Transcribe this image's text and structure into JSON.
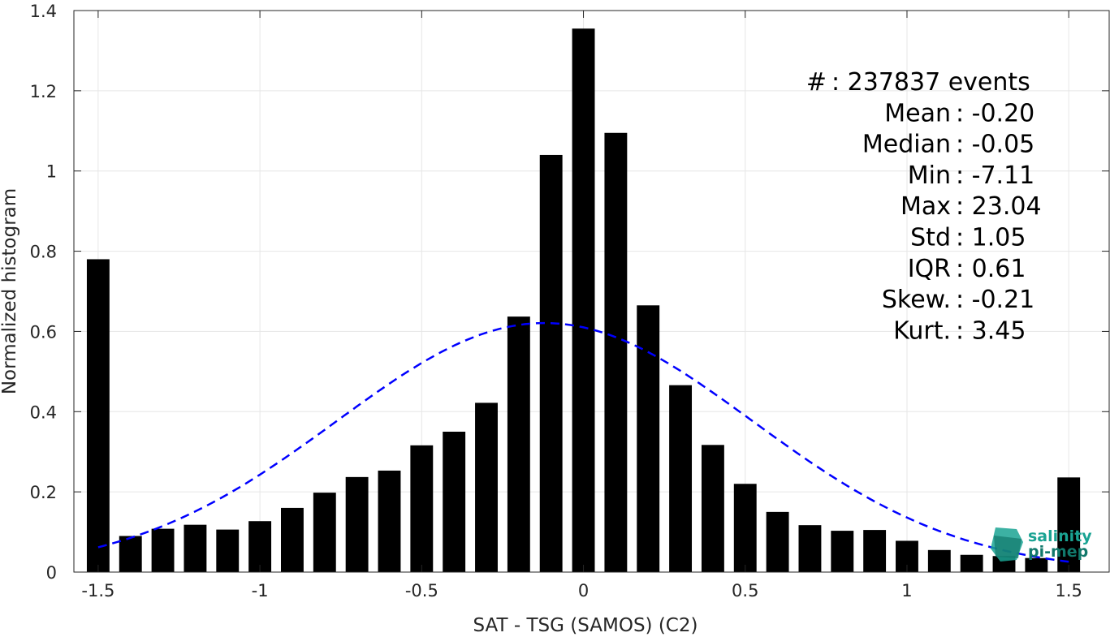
{
  "chart_data": {
    "type": "bar",
    "xlabel": "SAT - TSG (SAMOS) (C2)",
    "ylabel": "Normalized histogram",
    "xlim": [
      -1.575,
      1.625
    ],
    "ylim": [
      0,
      1.4
    ],
    "grid": true,
    "xticks": [
      -1.5,
      -1,
      -0.5,
      0,
      0.5,
      1,
      1.5
    ],
    "xtick_labels": [
      "-1.5",
      "-1",
      "-0.5",
      "0",
      "0.5",
      "1",
      "1.5"
    ],
    "yticks": [
      0,
      0.2,
      0.4,
      0.6,
      0.8,
      1,
      1.2,
      1.4
    ],
    "ytick_labels": [
      "0",
      "0.2",
      "0.4",
      "0.6",
      "0.8",
      "1",
      "1.2",
      "1.4"
    ],
    "bar_width": 0.07,
    "x": [
      -1.5,
      -1.4,
      -1.3,
      -1.2,
      -1.1,
      -1.0,
      -0.9,
      -0.8,
      -0.7,
      -0.6,
      -0.5,
      -0.4,
      -0.3,
      -0.2,
      -0.1,
      0.0,
      0.1,
      0.2,
      0.3,
      0.4,
      0.5,
      0.6,
      0.7,
      0.8,
      0.9,
      1.0,
      1.1,
      1.2,
      1.3,
      1.4,
      1.5
    ],
    "values": [
      0.78,
      0.09,
      0.108,
      0.118,
      0.106,
      0.127,
      0.16,
      0.198,
      0.237,
      0.253,
      0.316,
      0.35,
      0.422,
      0.637,
      1.04,
      1.355,
      1.095,
      0.665,
      0.466,
      0.317,
      0.22,
      0.15,
      0.117,
      0.103,
      0.105,
      0.078,
      0.055,
      0.043,
      0.04,
      0.035,
      0.236
    ],
    "fit_curve": {
      "style": "dashed",
      "color": "#0000ff",
      "mean": -0.12,
      "std": 0.6425,
      "x_range": [
        -1.5,
        1.5
      ]
    },
    "bar_color": "#000000",
    "stats": [
      {
        "label": "#  ",
        "value": "237837 events"
      },
      {
        "label": "Mean ",
        "value": "-0.20"
      },
      {
        "label": "Median ",
        "value": "-0.05"
      },
      {
        "label": "Min ",
        "value": "-7.11"
      },
      {
        "label": "Max ",
        "value": "23.04"
      },
      {
        "label": "Std ",
        "value": "1.05"
      },
      {
        "label": "IQR ",
        "value": "0.61"
      },
      {
        "label": "Skew. ",
        "value": "-0.21"
      },
      {
        "label": "Kurt. ",
        "value": "3.45"
      }
    ]
  },
  "logo": {
    "line1": "salinity",
    "line2": "pi-mep",
    "color": "#1aa393"
  }
}
